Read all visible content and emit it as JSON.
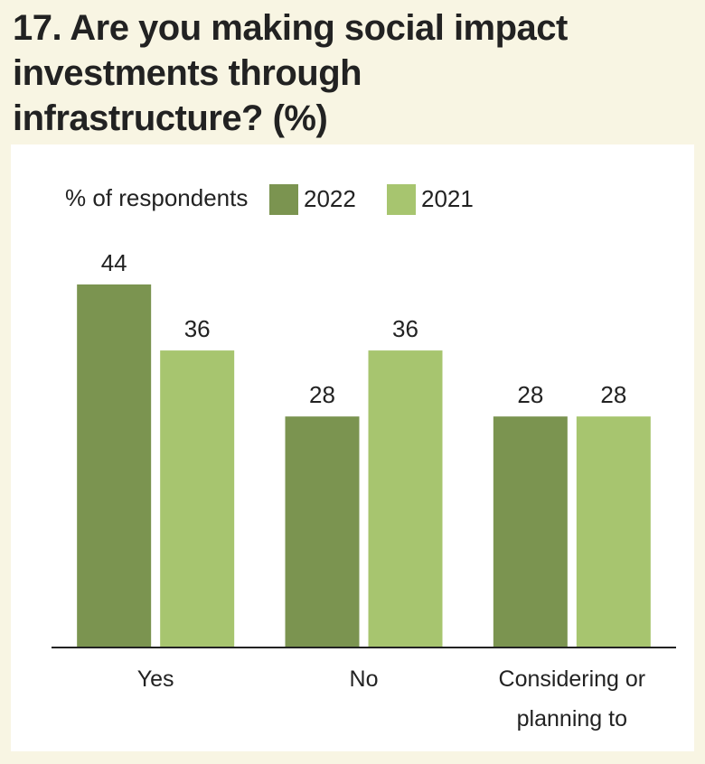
{
  "chart_data": {
    "type": "bar",
    "title": "17. Are you making social impact investments through infrastructure? (%)",
    "legend_title": "% of respondents",
    "categories": [
      "Yes",
      "No",
      "Considering or planning to"
    ],
    "series": [
      {
        "name": "2022",
        "color": "#7b9450",
        "values": [
          44,
          28,
          28
        ]
      },
      {
        "name": "2021",
        "color": "#a7c56f",
        "values": [
          36,
          36,
          28
        ]
      }
    ]
  }
}
